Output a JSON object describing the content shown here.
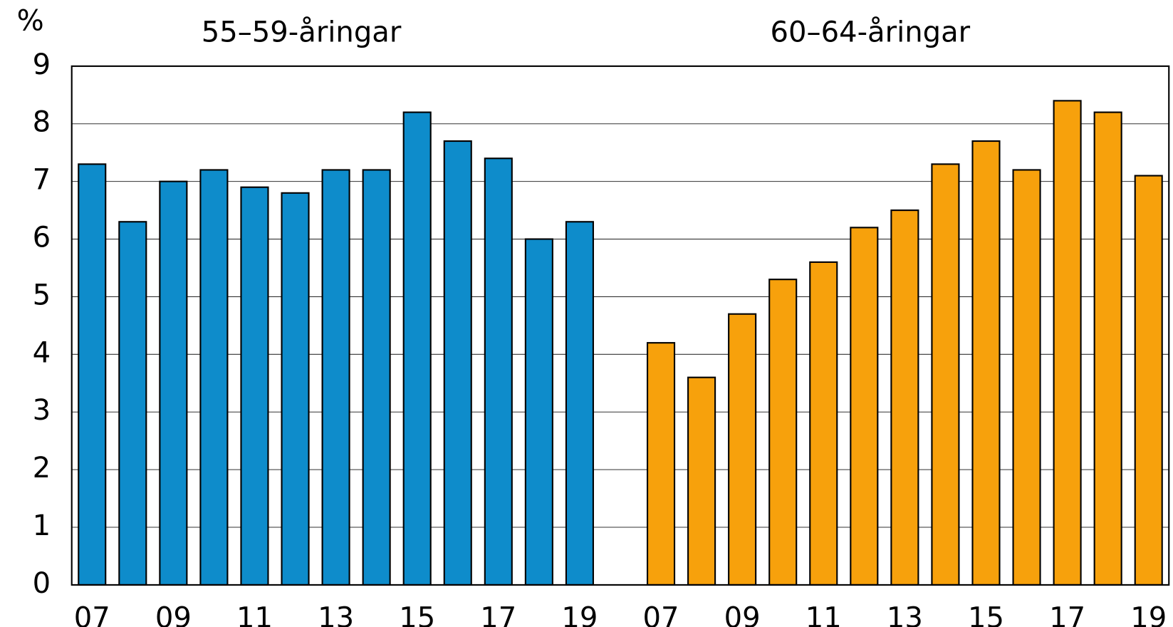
{
  "chart_data": {
    "type": "bar",
    "y_label": "%",
    "categories": [
      "07",
      null,
      "09",
      null,
      "11",
      null,
      "13",
      null,
      "15",
      null,
      "17",
      null,
      "19",
      null,
      "07",
      null,
      "09",
      null,
      "11",
      null,
      "13",
      null,
      "15",
      null,
      "17",
      null,
      "19"
    ],
    "series": [
      {
        "name": "55–59-åringar",
        "color": "#0e8ccb",
        "values": [
          7.3,
          6.3,
          7.0,
          7.2,
          6.9,
          6.8,
          7.2,
          7.2,
          8.2,
          7.7,
          7.4,
          6.0,
          6.3,
          null,
          null,
          null,
          null,
          null,
          null,
          null,
          null,
          null,
          null,
          null,
          null,
          null,
          null
        ]
      },
      {
        "name": "60–64-åringar",
        "color": "#f7a10c",
        "values": [
          null,
          null,
          null,
          null,
          null,
          null,
          null,
          null,
          null,
          null,
          null,
          null,
          null,
          null,
          4.2,
          3.6,
          4.7,
          5.3,
          5.6,
          6.2,
          6.5,
          7.3,
          7.7,
          7.2,
          8.4,
          8.2,
          7.1
        ]
      }
    ],
    "ylim": [
      0,
      9
    ],
    "yticks": [
      0,
      1,
      2,
      3,
      4,
      5,
      6,
      7,
      8,
      9
    ],
    "grid": true
  }
}
